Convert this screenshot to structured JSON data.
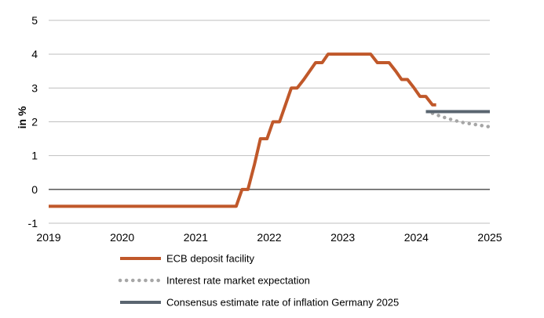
{
  "chart_data": {
    "type": "line",
    "ylabel": "in %",
    "xlim": [
      2019,
      2025
    ],
    "ylim": [
      -1,
      5
    ],
    "x_ticks": [
      "2019",
      "2020",
      "2021",
      "2022",
      "2023",
      "2024",
      "2025"
    ],
    "y_ticks": [
      "-1",
      "0",
      "1",
      "2",
      "3",
      "4",
      "5"
    ],
    "grid": true,
    "legend_position": "bottom",
    "series": [
      {
        "name": "ECB deposit facility",
        "color": "#C0582A",
        "style": "solid",
        "x": [
          2019.0,
          2021.55,
          2021.63,
          2021.71,
          2021.8,
          2021.88,
          2021.97,
          2022.05,
          2022.14,
          2022.22,
          2022.3,
          2022.38,
          2022.47,
          2022.55,
          2022.63,
          2022.72,
          2022.8,
          2023.0,
          2023.2,
          2023.38,
          2023.47,
          2023.55,
          2023.63,
          2023.72,
          2023.8,
          2023.88,
          2023.97,
          2024.05,
          2024.13,
          2024.22,
          2024.27
        ],
        "y": [
          -0.5,
          -0.5,
          0.0,
          0.0,
          0.75,
          1.5,
          1.5,
          2.0,
          2.0,
          2.5,
          3.0,
          3.0,
          3.25,
          3.5,
          3.75,
          3.75,
          4.0,
          4.0,
          4.0,
          4.0,
          3.75,
          3.75,
          3.75,
          3.5,
          3.25,
          3.25,
          3.0,
          2.75,
          2.75,
          2.5,
          2.5
        ]
      },
      {
        "name": "Interest rate market expectation",
        "color": "#A6A6A6",
        "style": "dotted",
        "x": [
          2024.22,
          2024.35,
          2024.5,
          2024.65,
          2024.8,
          2025.0
        ],
        "y": [
          2.25,
          2.15,
          2.05,
          1.97,
          1.92,
          1.85
        ]
      },
      {
        "name": "Consensus estimate rate of inflation Germany 2025",
        "color": "#5A6570",
        "style": "solid",
        "x": [
          2024.13,
          2025.0
        ],
        "y": [
          2.3,
          2.3
        ]
      }
    ]
  }
}
